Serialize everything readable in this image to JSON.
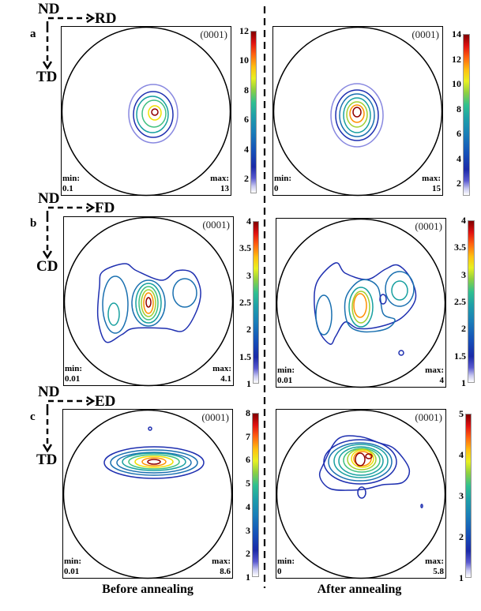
{
  "rows": [
    {
      "letter": "a",
      "axes": {
        "origin": "ND",
        "horizontal": "RD",
        "vertical": "TD"
      },
      "before": {
        "pole": "(0001)",
        "min_label": "min:",
        "min": "0.1",
        "max_label": "max:",
        "max": "13",
        "colorbar": {
          "range": [
            1,
            12
          ],
          "ticks": [
            "2",
            "4",
            "6",
            "8",
            "10",
            "12"
          ]
        }
      },
      "after": {
        "pole": "(0001)",
        "min_label": "min:",
        "min": "0",
        "max_label": "max:",
        "max": "15",
        "colorbar": {
          "range": [
            1,
            14
          ],
          "ticks": [
            "2",
            "4",
            "6",
            "8",
            "10",
            "12",
            "14"
          ]
        }
      }
    },
    {
      "letter": "b",
      "axes": {
        "origin": "ND",
        "horizontal": "FD",
        "vertical": "CD"
      },
      "before": {
        "pole": "(0001)",
        "min_label": "min:",
        "min": "0.01",
        "max_label": "max:",
        "max": "4.1",
        "colorbar": {
          "range": [
            1,
            4
          ],
          "ticks": [
            "1",
            "1.5",
            "2",
            "2.5",
            "3",
            "3.5",
            "4"
          ]
        }
      },
      "after": {
        "pole": "(0001)",
        "min_label": "min:",
        "min": "0.01",
        "max_label": "max:",
        "max": "4",
        "colorbar": {
          "range": [
            1,
            4
          ],
          "ticks": [
            "1",
            "1.5",
            "2",
            "2.5",
            "3",
            "3.5",
            "4"
          ]
        }
      }
    },
    {
      "letter": "c",
      "axes": {
        "origin": "ND",
        "horizontal": "ED",
        "vertical": "TD"
      },
      "before": {
        "pole": "(0001)",
        "min_label": "min:",
        "min": "0.01",
        "max_label": "max:",
        "max": "8.6",
        "colorbar": {
          "range": [
            1,
            8
          ],
          "ticks": [
            "1",
            "2",
            "3",
            "4",
            "5",
            "6",
            "7",
            "8"
          ]
        }
      },
      "after": {
        "pole": "(0001)",
        "min_label": "min:",
        "min": "0",
        "max_label": "max:",
        "max": "5.8",
        "colorbar": {
          "range": [
            1,
            5
          ],
          "ticks": [
            "1",
            "2",
            "3",
            "4",
            "5"
          ]
        }
      }
    }
  ],
  "captions": {
    "before": "Before annealing",
    "after": "After annealing"
  },
  "colormap": "jet",
  "contour_colors": [
    "#8888e0",
    "#1e2fb0",
    "#1a70b0",
    "#18a0a0",
    "#40c080",
    "#a0d030",
    "#f0e000",
    "#ff9000",
    "#e02010",
    "#900000"
  ]
}
